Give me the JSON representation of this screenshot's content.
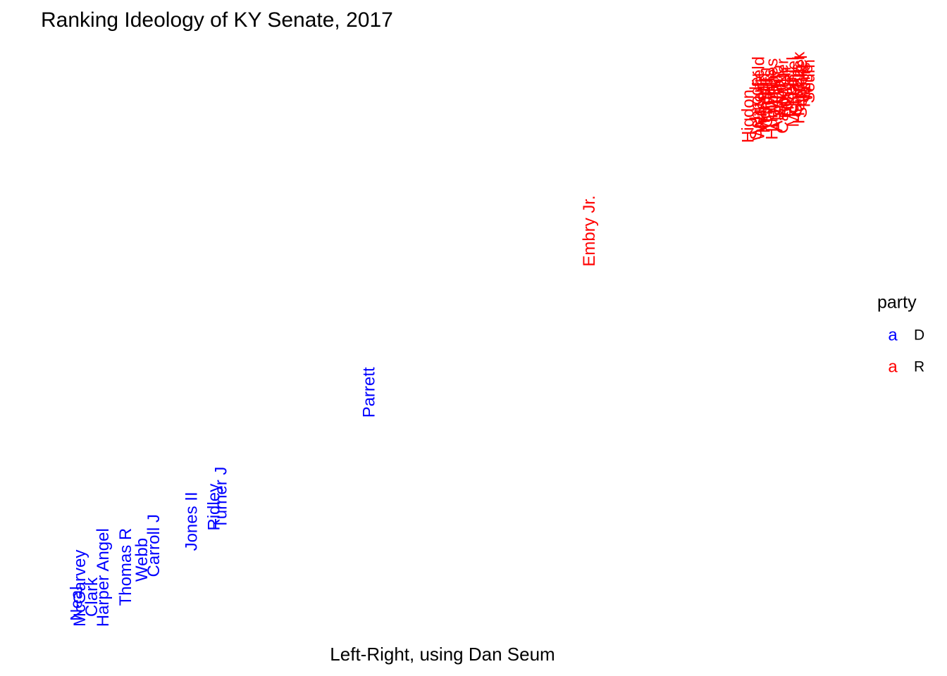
{
  "chart_data": {
    "type": "text-scatter",
    "title": "Ranking Ideology of KY Senate, 2017",
    "x_label": "Left-Right, using Dan Seum",
    "legend_title": "party",
    "legend_glyph": "a",
    "legend_position": "right",
    "xlim": [
      0,
      100
    ],
    "ylim": [
      0,
      100
    ],
    "series": [
      {
        "name": "D",
        "color": "#0000ff",
        "labels": [
          "Neal",
          "McGarvey",
          "Clark",
          "Harper Angel",
          "Thomas R",
          "Webb",
          "Carroll J",
          "Jones II",
          "Ridley",
          "Turner J",
          "Parrett"
        ],
        "x": [
          4.4,
          4.8,
          6.3,
          7.7,
          10.5,
          12.5,
          14.0,
          18.7,
          21.5,
          22.4,
          40.8
        ],
        "values": [
          5.1,
          7.7,
          6.2,
          9.5,
          11.3,
          12.5,
          14.9,
          19.0,
          21.4,
          23.0,
          40.8
        ]
      },
      {
        "name": "R",
        "color": "#ff0000",
        "labels": [
          "Embry Jr.",
          "Higdon",
          "Schroder",
          "Westerfield",
          "Wilson",
          "Meredith",
          "Girdler",
          "Givens",
          "Humphries",
          "Mills",
          "Alvarado",
          "Smith",
          "Carpenter",
          "Bowen",
          "Thayer",
          "Kerr",
          "McDaniel",
          "Stivers",
          "Hornback",
          "Schickel",
          "Harris",
          "Wise",
          "Seum"
        ],
        "x": [
          68.2,
          88.0,
          89.0,
          89.3,
          89.6,
          90.0,
          90.3,
          90.6,
          91.0,
          91.3,
          91.6,
          92.0,
          92.3,
          92.6,
          93.0,
          93.3,
          93.6,
          94.0,
          94.3,
          94.6,
          95.0,
          95.3,
          95.6
        ],
        "values": [
          68.1,
          87.5,
          89.3,
          90.5,
          89.0,
          90.2,
          89.8,
          91.0,
          90.4,
          90.8,
          90.5,
          91.2,
          90.9,
          91.5,
          91.3,
          91.8,
          91.6,
          92.0,
          92.3,
          92.5,
          92.8,
          93.1,
          93.4
        ]
      }
    ]
  }
}
